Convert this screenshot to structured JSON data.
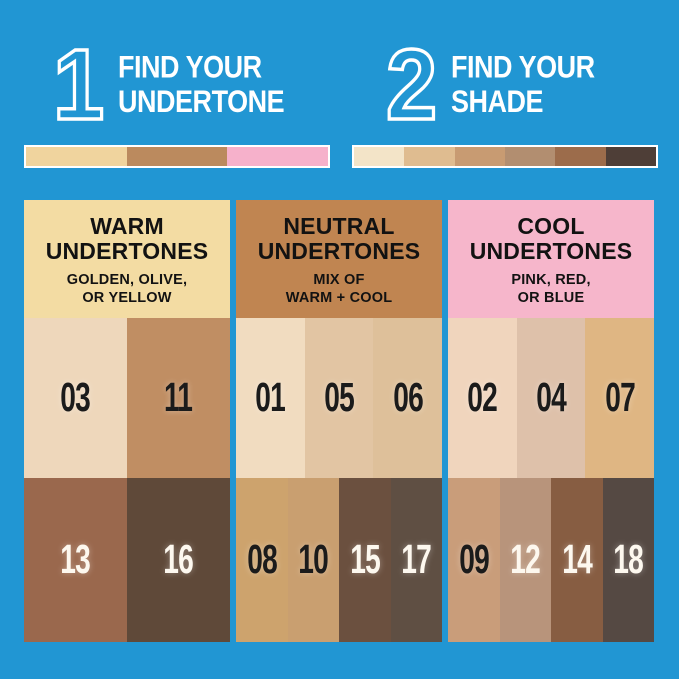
{
  "page": {
    "background": "#2196d3"
  },
  "steps": [
    {
      "number": "1",
      "title_line1": "FIND YOUR",
      "title_line2": "UNDERTONE"
    },
    {
      "number": "2",
      "title_line1": "FIND YOUR",
      "title_line2": "SHADE"
    }
  ],
  "strips": {
    "undertone_colors": [
      "#f0d49e",
      "#bb8a5e",
      "#f6b1cb"
    ],
    "shade_colors": [
      "#f3e4c8",
      "#dfbc90",
      "#c89b72",
      "#b28e70",
      "#9c6c4b",
      "#4e3e37"
    ]
  },
  "columns": [
    {
      "name": "warm",
      "header": {
        "bg": "#f3dca3",
        "title_line1": "WARM",
        "title_line2": "UNDERTONES",
        "subtitle_line1": "GOLDEN, OLIVE,",
        "subtitle_line2": "OR YELLOW"
      },
      "light_row": [
        {
          "label": "03",
          "bg": "#eed7bb",
          "text_color": "#1b1b1b"
        },
        {
          "label": "11",
          "bg": "#c08e63",
          "text_color": "#1b1b1b"
        }
      ],
      "dark_row": [
        {
          "label": "13",
          "bg": "#9a684d",
          "text_color": "#fdf8ef"
        },
        {
          "label": "16",
          "bg": "#5f4939",
          "text_color": "#fdf8ef"
        }
      ]
    },
    {
      "name": "neutral",
      "header": {
        "bg": "#c08551",
        "title_line1": "NEUTRAL",
        "title_line2": "UNDERTONES",
        "subtitle_line1": "MIX OF",
        "subtitle_line2": "WARM + COOL"
      },
      "light_row": [
        {
          "label": "01",
          "bg": "#f1dcc0",
          "text_color": "#1b1b1b"
        },
        {
          "label": "05",
          "bg": "#e2c5a3",
          "text_color": "#1b1b1b"
        },
        {
          "label": "06",
          "bg": "#dec09a",
          "text_color": "#1b1b1b"
        }
      ],
      "dark_row": [
        {
          "label": "08",
          "bg": "#cda36d",
          "text_color": "#1b1b1b"
        },
        {
          "label": "10",
          "bg": "#c99f70",
          "text_color": "#1b1b1b"
        },
        {
          "label": "15",
          "bg": "#6b503f",
          "text_color": "#fdf8ef"
        },
        {
          "label": "17",
          "bg": "#5f4f43",
          "text_color": "#fdf8ef"
        }
      ]
    },
    {
      "name": "cool",
      "header": {
        "bg": "#f6b6cb",
        "title_line1": "COOL",
        "title_line2": "UNDERTONES",
        "subtitle_line1": "PINK, RED,",
        "subtitle_line2": "OR BLUE"
      },
      "light_row": [
        {
          "label": "02",
          "bg": "#f0d5bd",
          "text_color": "#1b1b1b"
        },
        {
          "label": "04",
          "bg": "#dec1aa",
          "text_color": "#1b1b1b"
        },
        {
          "label": "07",
          "bg": "#dfb683",
          "text_color": "#1b1b1b"
        }
      ],
      "dark_row": [
        {
          "label": "09",
          "bg": "#c99d7a",
          "text_color": "#1b1b1b"
        },
        {
          "label": "12",
          "bg": "#b8947b",
          "text_color": "#fdf8ef"
        },
        {
          "label": "14",
          "bg": "#875d42",
          "text_color": "#fdf8ef"
        },
        {
          "label": "18",
          "bg": "#554943",
          "text_color": "#fdf8ef"
        }
      ]
    }
  ]
}
